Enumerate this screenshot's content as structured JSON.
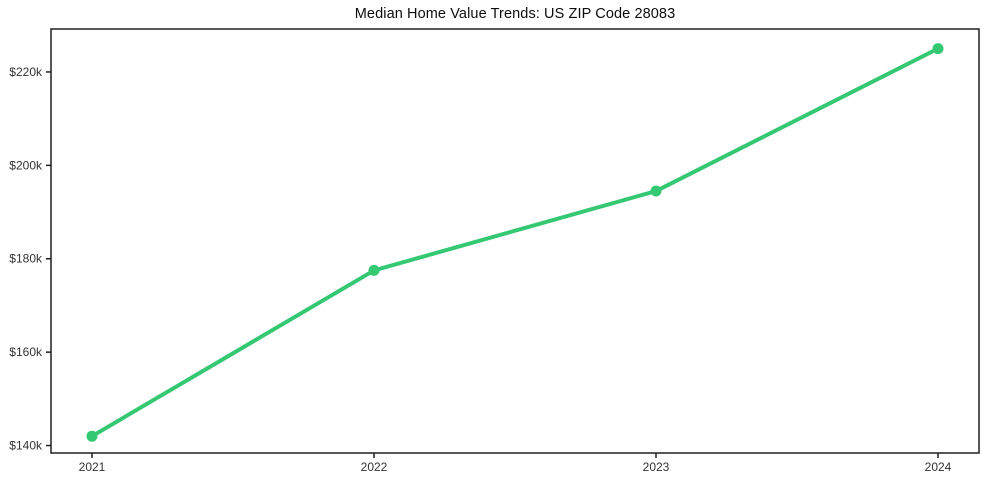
{
  "chart": {
    "title": "Median Home Value Trends: US ZIP Code 28083"
  },
  "chart_data": {
    "type": "line",
    "title": "Median Home Value Trends: US ZIP Code 28083",
    "categories": [
      "2021",
      "2022",
      "2023",
      "2024"
    ],
    "series": [
      {
        "name": "Median Home Value",
        "values": [
          142000,
          177500,
          194500,
          225000
        ]
      }
    ],
    "xlabel": "",
    "ylabel": "",
    "ylim": [
      138400,
      229200
    ],
    "yticks": [
      {
        "value": 140000,
        "label": "$140k"
      },
      {
        "value": 160000,
        "label": "$160k"
      },
      {
        "value": 180000,
        "label": "$180k"
      },
      {
        "value": 200000,
        "label": "$200k"
      },
      {
        "value": 220000,
        "label": "$220k"
      }
    ],
    "grid": false,
    "legend": "none",
    "marker": "circle",
    "colors": {
      "line": "#35c873",
      "marker": "#35c873",
      "axis": "#1f1f1f",
      "tick_label": "#333333",
      "title": "#0d0d0d",
      "background": "#ffffff"
    }
  }
}
